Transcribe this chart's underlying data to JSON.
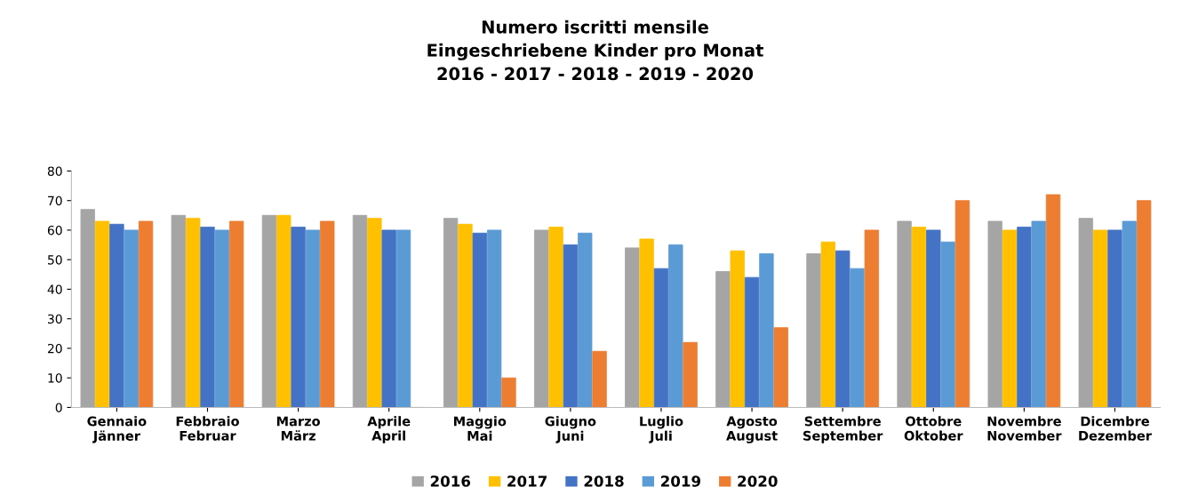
{
  "chart_data": {
    "type": "bar",
    "title": "Numero iscritti mensile\nEingeschriebene Kinder pro Monat\n2016 - 2017 - 2018 - 2019 - 2020",
    "categories": [
      "Gennaio\nJänner",
      "Febbraio\nFebruar",
      "Marzo\nMärz",
      "Aprile\nApril",
      "Maggio\nMai",
      "Giugno\nJuni",
      "Luglio\nJuli",
      "Agosto\nAugust",
      "Settembre\nSeptember",
      "Ottobre\nOktober",
      "Novembre\nNovember",
      "Dicembre\nDezember"
    ],
    "series": [
      {
        "name": "2016",
        "color": "#a5a5a5",
        "values": [
          67,
          65,
          65,
          65,
          64,
          60,
          54,
          46,
          52,
          63,
          63,
          64
        ]
      },
      {
        "name": "2017",
        "color": "#ffc000",
        "values": [
          63,
          64,
          65,
          64,
          62,
          61,
          57,
          53,
          56,
          61,
          60,
          60
        ]
      },
      {
        "name": "2018",
        "color": "#4472c4",
        "values": [
          62,
          61,
          61,
          60,
          59,
          55,
          47,
          44,
          53,
          60,
          61,
          60
        ]
      },
      {
        "name": "2019",
        "color": "#5b9bd5",
        "values": [
          60,
          60,
          60,
          60,
          60,
          59,
          55,
          52,
          47,
          56,
          63,
          63
        ]
      },
      {
        "name": "2020",
        "color": "#ed7d31",
        "values": [
          63,
          63,
          63,
          0,
          10,
          19,
          22,
          27,
          60,
          70,
          72,
          70
        ]
      }
    ],
    "ylim": [
      0,
      80
    ],
    "yticks": [
      0,
      10,
      20,
      30,
      40,
      50,
      60,
      70,
      80
    ],
    "legend": "bottom",
    "grid": false
  }
}
